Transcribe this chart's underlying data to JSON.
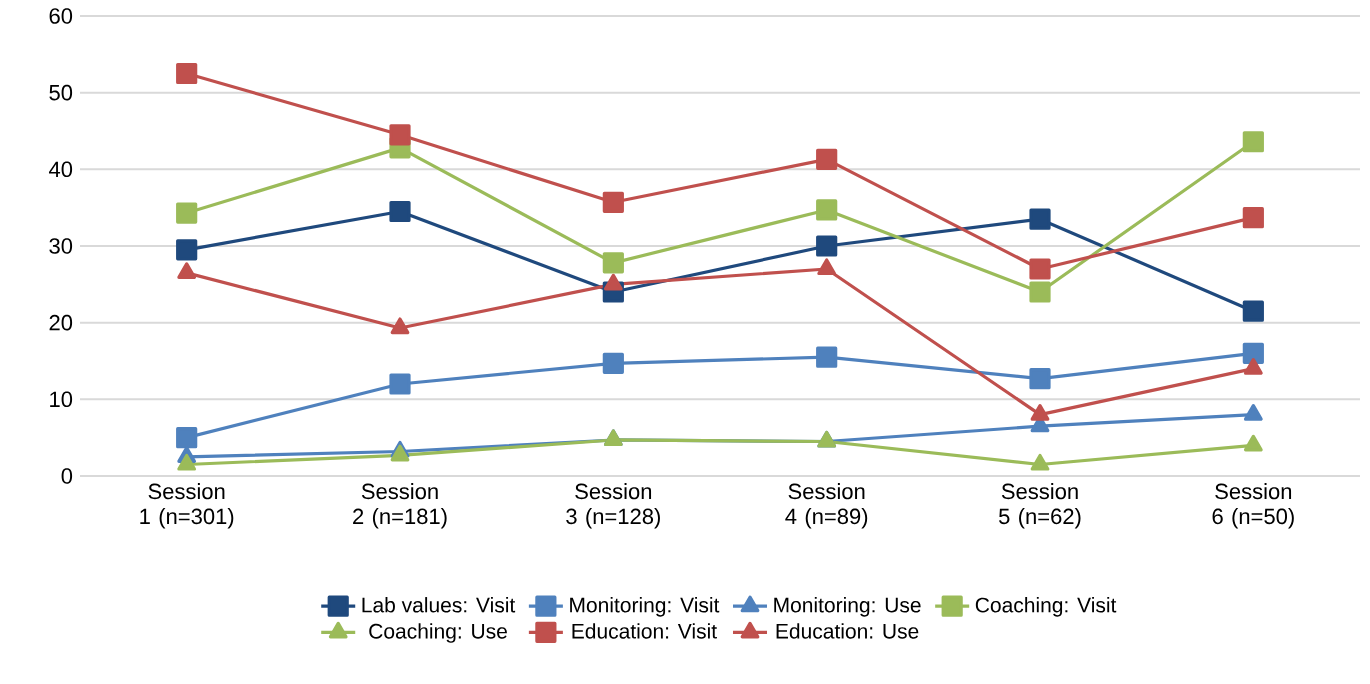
{
  "chart_data": {
    "type": "line",
    "categories": [
      "Session 1 (n=301)",
      "Session 2 (n=181)",
      "Session 3 (n=128)",
      "Session 4 (n=89)",
      "Session 5 (n=62)",
      "Session 6 (n=50)"
    ],
    "series": [
      {
        "name": "Lab values: Visit",
        "color": "#1f497d",
        "marker": "square",
        "values": [
          29.5,
          34.5,
          24,
          30,
          33.5,
          21.5
        ]
      },
      {
        "name": "Monitoring: Visit",
        "color": "#4f81bd",
        "marker": "square",
        "values": [
          5,
          12,
          14.7,
          15.5,
          12.7,
          16
        ]
      },
      {
        "name": "Monitoring: Use",
        "color": "#4f81bd",
        "marker": "triangle",
        "values": [
          2.5,
          3.2,
          4.7,
          4.5,
          6.5,
          8
        ]
      },
      {
        "name": "Coaching: Visit",
        "color": "#9bbb59",
        "marker": "square",
        "values": [
          34.3,
          42.8,
          27.8,
          34.7,
          24,
          43.6
        ]
      },
      {
        "name": "Coaching: Use",
        "color": "#9bbb59",
        "marker": "triangle",
        "values": [
          1.5,
          2.7,
          4.7,
          4.5,
          1.5,
          4
        ]
      },
      {
        "name": "Education: Visit",
        "color": "#c0504d",
        "marker": "square",
        "values": [
          52.5,
          44.5,
          35.7,
          41.3,
          27,
          33.7
        ]
      },
      {
        "name": "Education: Use",
        "color": "#c0504d",
        "marker": "triangle",
        "values": [
          26.5,
          19.3,
          25,
          27,
          8,
          14
        ]
      }
    ],
    "ylim": [
      0,
      60
    ],
    "yticks": [
      0,
      10,
      20,
      30,
      40,
      50,
      60
    ],
    "grid": "y",
    "legend": "bottom",
    "line_style": "solid"
  }
}
